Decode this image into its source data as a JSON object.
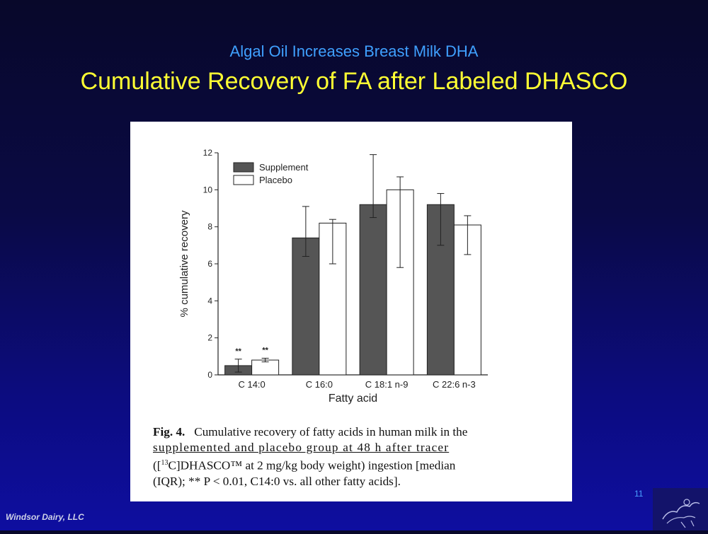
{
  "slide": {
    "subtitle": "Algal Oil Increases Breast Milk DHA",
    "title": "Cumulative Recovery of FA after Labeled DHASCO",
    "slide_number": "11",
    "footer": "Windsor Dairy, LLC"
  },
  "caption": {
    "fig_label": "Fig. 4.",
    "line1": "Cumulative recovery of fatty acids in human milk in the",
    "line2": "supplemented and placebo group at 48 h after tracer",
    "line3_pre": "([",
    "line3_sup": "13",
    "line3_post": "C]DHASCO™ at 2 mg/kg body weight) ingestion [median",
    "line4": "(IQR); ** P < 0.01, C14:0 vs. all other fatty acids]."
  },
  "chart_data": {
    "type": "bar",
    "xlabel": "Fatty acid",
    "ylabel": "% cumulative recovery",
    "ylim": [
      0,
      12
    ],
    "yticks": [
      0,
      2,
      4,
      6,
      8,
      10,
      12
    ],
    "categories": [
      "C 14:0",
      "C 16:0",
      "C 18:1 n-9",
      "C 22:6 n-3"
    ],
    "legend_position": "top-left",
    "series": [
      {
        "name": "Supplement",
        "color": "#555555",
        "values": [
          0.5,
          7.4,
          9.2,
          9.2
        ],
        "err_low": [
          0.15,
          6.4,
          8.5,
          7.0
        ],
        "err_high": [
          0.85,
          9.1,
          11.9,
          9.8
        ],
        "annotations": [
          "**",
          "",
          "",
          ""
        ]
      },
      {
        "name": "Placebo",
        "color": "#ffffff",
        "values": [
          0.8,
          8.2,
          10.0,
          8.1
        ],
        "err_low": [
          0.7,
          6.0,
          5.8,
          6.5
        ],
        "err_high": [
          0.9,
          8.4,
          10.7,
          8.6
        ],
        "annotations": [
          "**",
          "",
          "",
          ""
        ]
      }
    ],
    "grid": false
  }
}
